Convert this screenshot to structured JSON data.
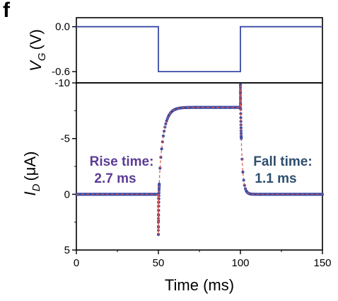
{
  "panel_label": "f",
  "colors": {
    "data_series": "#3a4aa6",
    "fit_line": "#e0564a",
    "rise_annotation": "#5b3c96",
    "fall_annotation": "#2e4e6e",
    "axis": "#000000"
  },
  "chart_data": [
    {
      "type": "line",
      "name": "top-panel",
      "ylabel": "V_G (V)",
      "ylabel_main": "V",
      "ylabel_sub": "G",
      "ylabel_unit": "(V)",
      "ylim": [
        -0.75,
        0.12
      ],
      "yticks": [
        0.0,
        -0.6
      ],
      "ytick_labels": [
        "0.0",
        "-0.6"
      ],
      "xlim": [
        0,
        150
      ],
      "series": [
        {
          "x": [
            0,
            50,
            50,
            100,
            100,
            150
          ],
          "y": [
            0.0,
            0.0,
            -0.6,
            -0.6,
            0.0,
            0.0
          ]
        }
      ]
    },
    {
      "type": "scatter",
      "name": "bottom-panel",
      "xlabel": "Time (ms)",
      "ylabel": "I_D (μA)",
      "ylabel_main": "I",
      "ylabel_sub": "D",
      "ylabel_unit": "(μA)",
      "xlim": [
        0,
        150
      ],
      "ylim": [
        5,
        -10
      ],
      "xticks": [
        0,
        50,
        100,
        150
      ],
      "xtick_labels": [
        "0",
        "50",
        "100",
        "150"
      ],
      "yticks": [
        -10,
        -5,
        0,
        5
      ],
      "ytick_labels": [
        "-10",
        "-5",
        "0",
        "5"
      ],
      "rise": {
        "start": 50,
        "tau": 2.7,
        "level": -7.8,
        "spike": 3.6
      },
      "fall": {
        "start": 100,
        "tau": 1.1,
        "level": -7.8,
        "spike": -9.8
      },
      "annotations": [
        {
          "line1": "Rise time:",
          "line2": "2.7 ms"
        },
        {
          "line1": "Fall time:",
          "line2": "1.1 ms"
        }
      ]
    }
  ]
}
